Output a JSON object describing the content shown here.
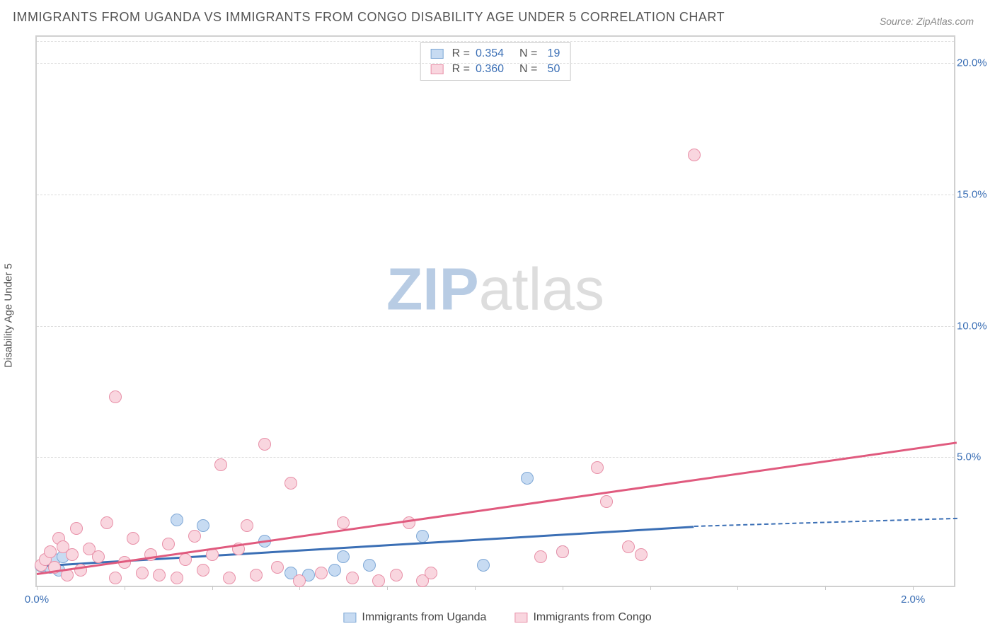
{
  "title": "IMMIGRANTS FROM UGANDA VS IMMIGRANTS FROM CONGO DISABILITY AGE UNDER 5 CORRELATION CHART",
  "source": "Source: ZipAtlas.com",
  "watermark": {
    "part1": "ZIP",
    "part2": "atlas",
    "color1": "#b8cce4",
    "color2": "#dddddd"
  },
  "chart": {
    "type": "scatter",
    "ylabel": "Disability Age Under 5",
    "background_color": "#ffffff",
    "grid_color": "#dcdcdc",
    "axis_color": "#d0d0d0",
    "tick_color": "#3b6fb5",
    "tick_fontsize": 15,
    "label_fontsize": 15,
    "title_fontsize": 18,
    "xlim": [
      0.0,
      2.1
    ],
    "ylim": [
      0.0,
      21.0
    ],
    "xticks": [
      {
        "v": 0.0,
        "l": "0.0%"
      },
      {
        "v": 2.0,
        "l": "2.0%"
      }
    ],
    "yticks": [
      {
        "v": 5.0,
        "l": "5.0%"
      },
      {
        "v": 10.0,
        "l": "10.0%"
      },
      {
        "v": 15.0,
        "l": "15.0%"
      },
      {
        "v": 20.0,
        "l": "20.0%"
      }
    ],
    "x_minor_step": 0.2,
    "marker_radius": 9,
    "marker_stroke_width": 1.2,
    "series": [
      {
        "name": "Immigrants from Uganda",
        "fill": "#c7dbf2",
        "stroke": "#7fa8d6",
        "R": "0.354",
        "N": "19",
        "trend_color": "#3b6fb5",
        "trend": {
          "x1": 0.0,
          "y1": 0.9,
          "x2": 1.5,
          "y2": 2.4,
          "dash_to_x": 2.1,
          "dash_to_y": 2.7
        },
        "points": [
          [
            0.01,
            0.85
          ],
          [
            0.02,
            0.9
          ],
          [
            0.02,
            1.0
          ],
          [
            0.03,
            0.8
          ],
          [
            0.04,
            1.1
          ],
          [
            0.05,
            0.7
          ],
          [
            0.06,
            1.2
          ],
          [
            0.32,
            2.6
          ],
          [
            0.38,
            2.4
          ],
          [
            0.52,
            1.8
          ],
          [
            0.58,
            0.6
          ],
          [
            0.62,
            0.5
          ],
          [
            0.68,
            0.7
          ],
          [
            0.7,
            1.2
          ],
          [
            0.76,
            0.9
          ],
          [
            0.88,
            2.0
          ],
          [
            1.02,
            0.9
          ],
          [
            1.12,
            4.2
          ],
          [
            1.2,
            1.4
          ]
        ]
      },
      {
        "name": "Immigrants from Congo",
        "fill": "#f9d6df",
        "stroke": "#e890a8",
        "R": "0.360",
        "N": "50",
        "trend_color": "#e05a7e",
        "trend": {
          "x1": 0.0,
          "y1": 0.6,
          "x2": 2.1,
          "y2": 5.6
        },
        "points": [
          [
            0.01,
            0.9
          ],
          [
            0.02,
            1.1
          ],
          [
            0.03,
            1.4
          ],
          [
            0.04,
            0.8
          ],
          [
            0.05,
            1.9
          ],
          [
            0.06,
            1.6
          ],
          [
            0.07,
            0.5
          ],
          [
            0.08,
            1.3
          ],
          [
            0.09,
            2.3
          ],
          [
            0.1,
            0.7
          ],
          [
            0.12,
            1.5
          ],
          [
            0.14,
            1.2
          ],
          [
            0.16,
            2.5
          ],
          [
            0.18,
            0.4
          ],
          [
            0.18,
            7.3
          ],
          [
            0.2,
            1.0
          ],
          [
            0.22,
            1.9
          ],
          [
            0.24,
            0.6
          ],
          [
            0.26,
            1.3
          ],
          [
            0.28,
            0.5
          ],
          [
            0.3,
            1.7
          ],
          [
            0.32,
            0.4
          ],
          [
            0.34,
            1.1
          ],
          [
            0.36,
            2.0
          ],
          [
            0.38,
            0.7
          ],
          [
            0.4,
            1.3
          ],
          [
            0.42,
            4.7
          ],
          [
            0.44,
            0.4
          ],
          [
            0.46,
            1.5
          ],
          [
            0.48,
            2.4
          ],
          [
            0.5,
            0.5
          ],
          [
            0.52,
            5.5
          ],
          [
            0.55,
            0.8
          ],
          [
            0.58,
            4.0
          ],
          [
            0.6,
            0.3
          ],
          [
            0.65,
            0.6
          ],
          [
            0.7,
            2.5
          ],
          [
            0.72,
            0.4
          ],
          [
            0.78,
            0.3
          ],
          [
            0.82,
            0.5
          ],
          [
            0.85,
            2.5
          ],
          [
            0.88,
            0.3
          ],
          [
            0.9,
            0.6
          ],
          [
            1.15,
            1.2
          ],
          [
            1.2,
            1.4
          ],
          [
            1.28,
            4.6
          ],
          [
            1.3,
            3.3
          ],
          [
            1.35,
            1.6
          ],
          [
            1.38,
            1.3
          ],
          [
            1.5,
            16.5
          ]
        ]
      }
    ]
  }
}
